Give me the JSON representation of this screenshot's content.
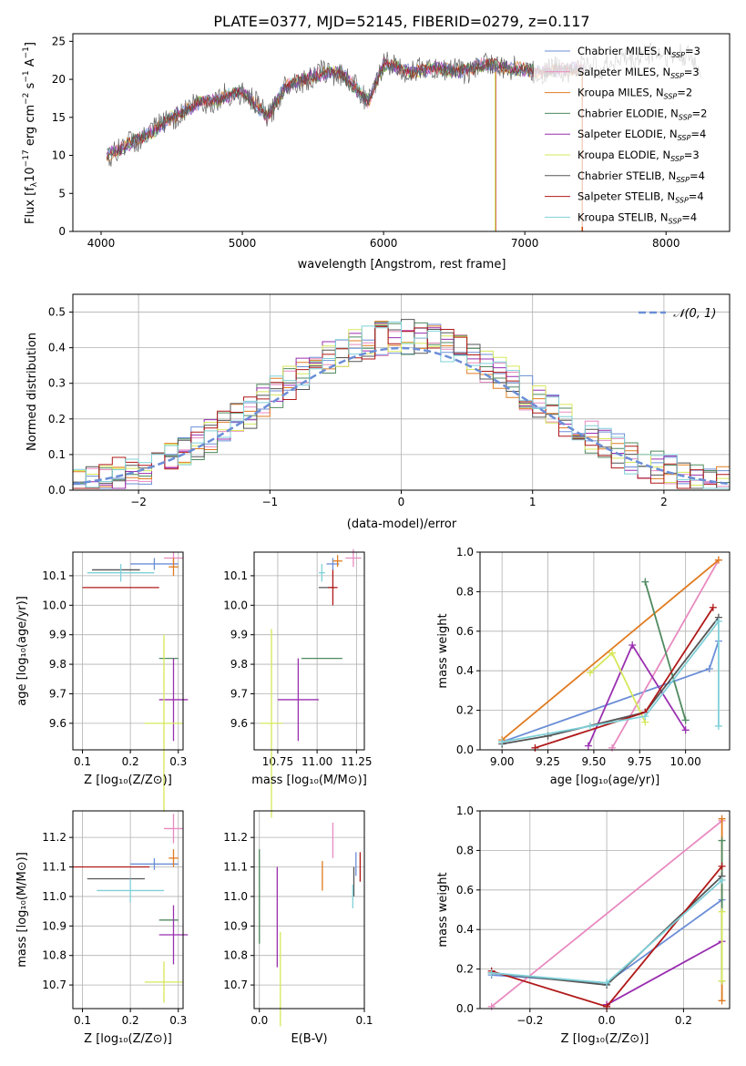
{
  "colors": {
    "Chabrier MILES": "#6b8ed6",
    "Salpeter MILES": "#e88ac0",
    "Kroupa MILES": "#e07b20",
    "Chabrier ELODIE": "#4f8a5f",
    "Salpeter ELODIE": "#9a2fb0",
    "Kroupa ELODIE": "#d6e85a",
    "Chabrier STELIB": "#555555",
    "Salpeter STELIB": "#b01818",
    "Kroupa STELIB": "#7fd0d8"
  },
  "chart_data": [
    {
      "type": "line",
      "title": "PLATE=0377, MJD=52145, FIBERID=0279, z=0.117",
      "xlabel": "wavelength [Angstrom, rest frame]",
      "ylabel": "Flux [f_λ10^-17 erg cm^-2 s^-1 A^-1]",
      "xlim": [
        3800,
        8450
      ],
      "ylim": [
        0,
        26
      ],
      "xticks": [
        "4000",
        "5000",
        "6000",
        "7000",
        "8000"
      ],
      "yticks": [
        "0",
        "5",
        "10",
        "15",
        "20",
        "25"
      ],
      "legend_position": "right",
      "legend": [
        {
          "name": "Chabrier MILES",
          "nssp": "3"
        },
        {
          "name": "Salpeter MILES",
          "nssp": "3"
        },
        {
          "name": "Kroupa MILES",
          "nssp": "2"
        },
        {
          "name": "Chabrier ELODIE",
          "nssp": "2"
        },
        {
          "name": "Salpeter ELODIE",
          "nssp": "4"
        },
        {
          "name": "Kroupa ELODIE",
          "nssp": "3"
        },
        {
          "name": "Chabrier STELIB",
          "nssp": "4"
        },
        {
          "name": "Salpeter STELIB",
          "nssp": "4"
        },
        {
          "name": "Kroupa STELIB",
          "nssp": "4"
        }
      ],
      "spectrum_envelope": {
        "x": [
          4040,
          4150,
          4300,
          4400,
          4500,
          4700,
          4860,
          5000,
          5175,
          5300,
          5500,
          5700,
          5890,
          6000,
          6200,
          6400,
          6563,
          6700,
          6900,
          7100,
          7400,
          7600,
          7800,
          8000,
          8250
        ],
        "y": [
          10.0,
          11.0,
          12.5,
          13.5,
          15.0,
          17.0,
          17.5,
          18.5,
          15.0,
          19.0,
          20.5,
          21.0,
          17.0,
          22.0,
          21.0,
          21.5,
          21.0,
          22.0,
          21.5,
          21.0,
          21.5,
          22.0,
          23.0,
          23.5,
          22.0
        ]
      },
      "drop_lines_x": [
        6790,
        7405
      ]
    },
    {
      "type": "histogram",
      "xlabel": "(data-model)/error",
      "ylabel": "Normed distribution",
      "xlim": [
        -2.5,
        2.5
      ],
      "ylim": [
        0,
        0.55
      ],
      "xticks": [
        "−2",
        "−1",
        "0",
        "1",
        "2"
      ],
      "yticks": [
        "0.0",
        "0.1",
        "0.2",
        "0.3",
        "0.4",
        "0.5"
      ],
      "grid": true,
      "reference_curve": "𝒩(0, 1)",
      "legend_position": "top-right"
    },
    {
      "type": "errorbar",
      "xlabel": "Z [log₁₀(Z/Z⊙)]",
      "ylabel": "age  [log₁₀(age/yr)]",
      "xlim": [
        0.08,
        0.31
      ],
      "ylim": [
        9.51,
        10.18
      ],
      "xticks": [
        "0.1",
        "0.2",
        "0.3"
      ],
      "yticks": [
        "9.6",
        "9.7",
        "9.8",
        "9.9",
        "10.0",
        "10.1"
      ],
      "points": [
        {
          "series": "Chabrier MILES",
          "x": 0.25,
          "y": 10.14,
          "xerr": 0.05,
          "yerr": 0.02
        },
        {
          "series": "Salpeter MILES",
          "x": 0.29,
          "y": 10.16,
          "xerr": 0.02,
          "yerr": 0.02
        },
        {
          "series": "Kroupa MILES",
          "x": 0.29,
          "y": 10.13,
          "xerr": 0.01,
          "yerr": 0.03
        },
        {
          "series": "Chabrier ELODIE",
          "x": 0.28,
          "y": 9.82,
          "xerr": 0.02,
          "yerr": 0.0
        },
        {
          "series": "Salpeter ELODIE",
          "x": 0.29,
          "y": 9.68,
          "xerr": 0.03,
          "yerr": 0.14
        },
        {
          "series": "Kroupa ELODIE",
          "x": 0.27,
          "y": 9.6,
          "xerr": 0.04,
          "yerr": 0.3
        },
        {
          "series": "Chabrier STELIB",
          "x": 0.17,
          "y": 10.12,
          "xerr": 0.05,
          "yerr": 0.0
        },
        {
          "series": "Salpeter STELIB",
          "x": 0.18,
          "y": 10.06,
          "xerr": 0.08,
          "yerr": 0.0
        },
        {
          "series": "Kroupa STELIB",
          "x": 0.18,
          "y": 10.11,
          "xerr": 0.07,
          "yerr": 0.03
        }
      ]
    },
    {
      "type": "errorbar",
      "xlabel": "mass [log₁₀(M/M⊙)]",
      "ylabel": "",
      "xlim": [
        10.6,
        11.3
      ],
      "ylim": [
        9.51,
        10.18
      ],
      "xticks": [
        "10.75",
        "11.00",
        "11.25"
      ],
      "yticks": [
        "9.6",
        "9.7",
        "9.8",
        "9.9",
        "10.0",
        "10.1"
      ],
      "points": [
        {
          "series": "Chabrier MILES",
          "x": 11.1,
          "y": 10.14,
          "xerr": 0.04,
          "yerr": 0.02
        },
        {
          "series": "Salpeter MILES",
          "x": 11.23,
          "y": 10.16,
          "xerr": 0.05,
          "yerr": 0.03
        },
        {
          "series": "Kroupa MILES",
          "x": 11.13,
          "y": 10.15,
          "xerr": 0.03,
          "yerr": 0.02
        },
        {
          "series": "Chabrier ELODIE",
          "x": 11.03,
          "y": 9.82,
          "xerr": 0.13,
          "yerr": 0.0
        },
        {
          "series": "Salpeter ELODIE",
          "x": 10.88,
          "y": 9.68,
          "xerr": 0.13,
          "yerr": 0.14
        },
        {
          "series": "Kroupa ELODIE",
          "x": 10.71,
          "y": 9.6,
          "xerr": 0.07,
          "yerr": 0.32
        },
        {
          "series": "Chabrier STELIB",
          "x": 11.06,
          "y": 10.06,
          "xerr": 0.05,
          "yerr": 0.0
        },
        {
          "series": "Salpeter STELIB",
          "x": 11.1,
          "y": 10.06,
          "xerr": 0.03,
          "yerr": 0.06
        },
        {
          "series": "Kroupa STELIB",
          "x": 11.03,
          "y": 10.11,
          "xerr": 0.02,
          "yerr": 0.03
        }
      ]
    },
    {
      "type": "line",
      "xlabel": "age  [log₁₀(age/yr)]",
      "ylabel": "mass weight",
      "xlim": [
        8.88,
        10.24
      ],
      "ylim": [
        0,
        1
      ],
      "xticks": [
        "9.00",
        "9.25",
        "9.50",
        "9.75",
        "10.00"
      ],
      "yticks": [
        "0.0",
        "0.2",
        "0.4",
        "0.6",
        "0.8",
        "1.0"
      ],
      "grid": true,
      "series": [
        {
          "name": "Chabrier MILES",
          "x": [
            9.0,
            10.13,
            10.18
          ],
          "y": [
            0.04,
            0.41,
            0.55
          ]
        },
        {
          "name": "Salpeter MILES",
          "x": [
            9.6,
            10.18
          ],
          "y": [
            0.01,
            0.96
          ]
        },
        {
          "name": "Kroupa MILES",
          "x": [
            9.0,
            10.18
          ],
          "y": [
            0.05,
            0.96
          ]
        },
        {
          "name": "Chabrier ELODIE",
          "x": [
            9.78,
            10.0
          ],
          "y": [
            0.85,
            0.15
          ]
        },
        {
          "name": "Salpeter ELODIE",
          "x": [
            9.47,
            9.71,
            10.0
          ],
          "y": [
            0.02,
            0.53,
            0.1
          ]
        },
        {
          "name": "Kroupa ELODIE",
          "x": [
            9.48,
            9.6,
            9.78
          ],
          "y": [
            0.39,
            0.49,
            0.14
          ]
        },
        {
          "name": "Chabrier STELIB",
          "x": [
            9.0,
            9.25,
            9.78,
            10.18
          ],
          "y": [
            0.03,
            0.07,
            0.19,
            0.67
          ]
        },
        {
          "name": "Salpeter STELIB",
          "x": [
            9.18,
            9.78,
            10.15
          ],
          "y": [
            0.01,
            0.19,
            0.72
          ]
        },
        {
          "name": "Kroupa STELIB",
          "x": [
            9.0,
            9.48,
            9.78,
            10.18,
            10.18
          ],
          "y": [
            0.04,
            0.12,
            0.17,
            0.65,
            0.12
          ]
        }
      ]
    },
    {
      "type": "errorbar",
      "xlabel": "Z [log₁₀(Z/Z⊙)]",
      "ylabel": "mass [log₁₀(M/M⊙)]",
      "xlim": [
        0.08,
        0.31
      ],
      "ylim": [
        10.62,
        11.29
      ],
      "xticks": [
        "0.1",
        "0.2",
        "0.3"
      ],
      "yticks": [
        "10.7",
        "10.8",
        "10.9",
        "11.0",
        "11.1",
        "11.2"
      ],
      "points": [
        {
          "series": "Chabrier MILES",
          "x": 0.25,
          "y": 11.11,
          "xerr": 0.05,
          "yerr": 0.02
        },
        {
          "series": "Salpeter MILES",
          "x": 0.29,
          "y": 11.23,
          "xerr": 0.02,
          "yerr": 0.05
        },
        {
          "series": "Kroupa MILES",
          "x": 0.29,
          "y": 11.13,
          "xerr": 0.01,
          "yerr": 0.03
        },
        {
          "series": "Chabrier ELODIE",
          "x": 0.28,
          "y": 10.92,
          "xerr": 0.02,
          "yerr": 0.0
        },
        {
          "series": "Salpeter ELODIE",
          "x": 0.29,
          "y": 10.87,
          "xerr": 0.03,
          "yerr": 0.1
        },
        {
          "series": "Kroupa ELODIE",
          "x": 0.27,
          "y": 10.71,
          "xerr": 0.04,
          "yerr": 0.07
        },
        {
          "series": "Chabrier STELIB",
          "x": 0.17,
          "y": 11.06,
          "xerr": 0.06,
          "yerr": 0.0
        },
        {
          "series": "Salpeter STELIB",
          "x": 0.16,
          "y": 11.1,
          "xerr": 0.08,
          "yerr": 0.0
        },
        {
          "series": "Kroupa STELIB",
          "x": 0.2,
          "y": 11.02,
          "xerr": 0.07,
          "yerr": 0.04
        }
      ]
    },
    {
      "type": "errorbar",
      "xlabel": "E(B-V)",
      "ylabel": "",
      "xlim": [
        -0.005,
        0.1
      ],
      "ylim": [
        10.62,
        11.29
      ],
      "xticks": [
        "0.0",
        "0.1"
      ],
      "yticks": [
        "10.7",
        "10.8",
        "10.9",
        "11.0",
        "11.1",
        "11.2"
      ],
      "points": [
        {
          "series": "Chabrier MILES",
          "x": 0.092,
          "y": 11.11,
          "xerr": 0.0,
          "yerr": 0.04
        },
        {
          "series": "Salpeter MILES",
          "x": 0.07,
          "y": 11.19,
          "xerr": 0.0,
          "yerr": 0.06
        },
        {
          "series": "Kroupa MILES",
          "x": 0.06,
          "y": 11.07,
          "xerr": 0.0,
          "yerr": 0.05
        },
        {
          "series": "Chabrier ELODIE",
          "x": 0.0,
          "y": 11.0,
          "xerr": 0.0,
          "yerr": 0.16
        },
        {
          "series": "Salpeter ELODIE",
          "x": 0.017,
          "y": 10.93,
          "xerr": 0.0,
          "yerr": 0.17
        },
        {
          "series": "Kroupa ELODIE",
          "x": 0.02,
          "y": 10.72,
          "xerr": 0.0,
          "yerr": 0.16
        },
        {
          "series": "Chabrier STELIB",
          "x": 0.09,
          "y": 11.05,
          "xerr": 0.0,
          "yerr": 0.05
        },
        {
          "series": "Salpeter STELIB",
          "x": 0.096,
          "y": 11.1,
          "xerr": 0.0,
          "yerr": 0.05
        },
        {
          "series": "Kroupa STELIB",
          "x": 0.089,
          "y": 11.0,
          "xerr": 0.0,
          "yerr": 0.04
        }
      ]
    },
    {
      "type": "line",
      "xlabel": "Z [log₁₀(Z/Z⊙)]",
      "ylabel": "mass weight",
      "xlim": [
        -0.33,
        0.32
      ],
      "ylim": [
        0,
        1
      ],
      "xticks": [
        "−0.2",
        "0.0",
        "0.2"
      ],
      "yticks": [
        "0.0",
        "0.2",
        "0.4",
        "0.6",
        "0.8",
        "1.0"
      ],
      "grid": true,
      "series": [
        {
          "name": "Chabrier MILES",
          "x": [
            -0.3,
            0.0,
            0.3
          ],
          "y": [
            0.17,
            0.13,
            0.55
          ]
        },
        {
          "name": "Salpeter MILES",
          "x": [
            -0.3,
            0.3
          ],
          "y": [
            0.01,
            0.95
          ]
        },
        {
          "name": "Kroupa MILES",
          "x": [
            0.3,
            0.3
          ],
          "y": [
            0.04,
            0.96
          ]
        },
        {
          "name": "Chabrier ELODIE",
          "x": [
            0.3,
            0.3
          ],
          "y": [
            0.14,
            0.85
          ]
        },
        {
          "name": "Salpeter ELODIE",
          "x": [
            0.0,
            0.3
          ],
          "y": [
            0.02,
            0.34
          ]
        },
        {
          "name": "Kroupa ELODIE",
          "x": [
            0.3,
            0.3
          ],
          "y": [
            0.14,
            0.49
          ]
        },
        {
          "name": "Chabrier STELIB",
          "x": [
            -0.3,
            0.0,
            0.3
          ],
          "y": [
            0.18,
            0.12,
            0.67
          ]
        },
        {
          "name": "Salpeter STELIB",
          "x": [
            -0.3,
            0.0,
            0.3
          ],
          "y": [
            0.19,
            0.01,
            0.72
          ]
        },
        {
          "name": "Kroupa STELIB",
          "x": [
            -0.3,
            0.0,
            0.3
          ],
          "y": [
            0.18,
            0.13,
            0.65
          ]
        }
      ]
    }
  ]
}
